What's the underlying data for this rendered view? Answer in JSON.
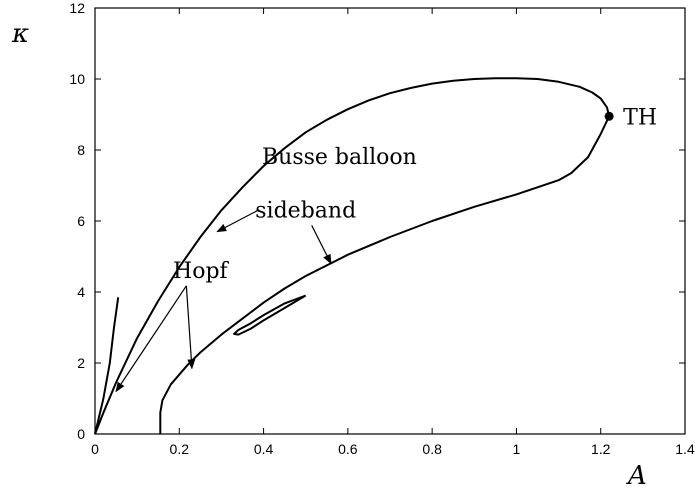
{
  "chart_data": {
    "type": "line",
    "title": "",
    "xlabel": "A",
    "ylabel": "κ",
    "xlim": [
      0,
      1.4
    ],
    "ylim": [
      0,
      12
    ],
    "xticks": [
      "0",
      "0.2",
      "0.4",
      "0.6",
      "0.8",
      "1",
      "1.2",
      "1.4"
    ],
    "yticks": [
      "0",
      "2",
      "4",
      "6",
      "8",
      "10",
      "12"
    ],
    "grid": false,
    "colors": {
      "line": "#000000",
      "axis": "#000000"
    },
    "series": [
      {
        "x": [
          0,
          0.02,
          0.05,
          0.1,
          0.15,
          0.2,
          0.25,
          0.3,
          0.35,
          0.4,
          0.45,
          0.5,
          0.55,
          0.6,
          0.65,
          0.7,
          0.75,
          0.8,
          0.85,
          0.9,
          0.95,
          1.0,
          1.05,
          1.1,
          1.15,
          1.18,
          1.2,
          1.215,
          1.22
        ],
        "y": [
          0,
          0.6,
          1.45,
          2.7,
          3.75,
          4.7,
          5.55,
          6.3,
          6.95,
          7.55,
          8.05,
          8.5,
          8.85,
          9.15,
          9.4,
          9.6,
          9.75,
          9.87,
          9.95,
          10.0,
          10.02,
          10.02,
          10.0,
          9.92,
          9.78,
          9.62,
          9.45,
          9.2,
          8.95
        ]
      },
      {
        "x": [
          1.22,
          1.2,
          1.17,
          1.13,
          1.1,
          1.0,
          0.9,
          0.8,
          0.7,
          0.6,
          0.5,
          0.45,
          0.4,
          0.35,
          0.3,
          0.25,
          0.22,
          0.18,
          0.16,
          0.155,
          0.155
        ],
        "y": [
          8.95,
          8.45,
          7.8,
          7.35,
          7.15,
          6.75,
          6.4,
          6.0,
          5.55,
          5.05,
          4.45,
          4.1,
          3.7,
          3.25,
          2.8,
          2.3,
          1.95,
          1.4,
          0.95,
          0.6,
          0
        ]
      },
      {
        "x": [
          0.5,
          0.45,
          0.4,
          0.37,
          0.34,
          0.33,
          0.34,
          0.37,
          0.4,
          0.45,
          0.5
        ],
        "y": [
          3.9,
          3.55,
          3.2,
          2.97,
          2.8,
          2.82,
          2.93,
          3.12,
          3.35,
          3.68,
          3.9
        ]
      },
      {
        "x": [
          0,
          0.02,
          0.035,
          0.045,
          0.055
        ],
        "y": [
          0,
          1.0,
          2.0,
          3.0,
          3.85
        ]
      }
    ],
    "points": [
      {
        "x": 1.22,
        "y": 8.95,
        "label": "TH"
      }
    ],
    "annotations": [
      {
        "text": "Busse balloon",
        "x": 0.58,
        "y": 7.6
      },
      {
        "text": "sideband",
        "x": 0.5,
        "y": 6.1,
        "arrows": [
          {
            "x": 0.29,
            "y": 5.7
          },
          {
            "x": 0.56,
            "y": 4.8
          }
        ]
      },
      {
        "text": "Hopf",
        "x": 0.25,
        "y": 4.4,
        "arrows": [
          {
            "x": 0.05,
            "y": 1.2
          },
          {
            "x": 0.23,
            "y": 1.85
          }
        ]
      }
    ]
  }
}
